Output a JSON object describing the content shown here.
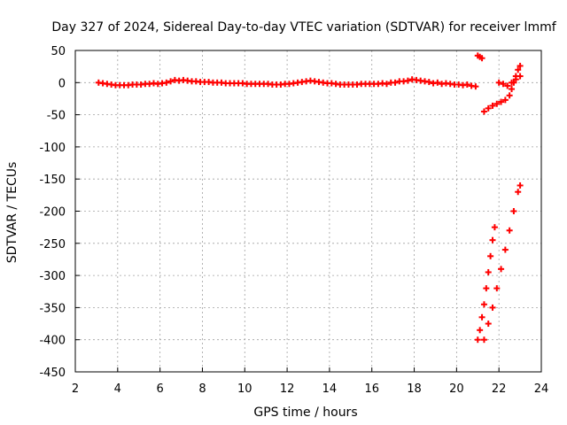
{
  "chart_data": {
    "type": "scatter",
    "title": "Day 327 of 2024, Sidereal Day-to-day VTEC variation (SDTVAR) for receiver lmmf",
    "xlabel": "GPS time / hours",
    "ylabel": "SDTVAR / TECUs",
    "xlim": [
      2,
      24
    ],
    "ylim": [
      -450,
      50
    ],
    "xticks": [
      2,
      4,
      6,
      8,
      10,
      12,
      14,
      16,
      18,
      20,
      22,
      24
    ],
    "yticks": [
      50,
      0,
      -50,
      -100,
      -150,
      -200,
      -250,
      -300,
      -350,
      -400,
      -450
    ],
    "xtick_labels": [
      "2",
      "4",
      "6",
      "8",
      "10",
      "12",
      "14",
      "16",
      "18",
      "20",
      "22",
      "24"
    ],
    "ytick_labels": [
      "50",
      "0",
      "-50",
      "-100",
      "-150",
      "-200",
      "-250",
      "-300",
      "-350",
      "-400",
      "-450"
    ],
    "grid": true,
    "marker": "plus",
    "color": "#ff0000",
    "series": [
      {
        "values_main": [
          [
            3.1,
            0
          ],
          [
            3.3,
            -1
          ],
          [
            3.5,
            -2
          ],
          [
            3.7,
            -3
          ],
          [
            3.9,
            -4
          ],
          [
            4.1,
            -4
          ],
          [
            4.3,
            -4
          ],
          [
            4.5,
            -4
          ],
          [
            4.7,
            -3
          ],
          [
            4.9,
            -3
          ],
          [
            5.1,
            -3
          ],
          [
            5.3,
            -2
          ],
          [
            5.5,
            -2
          ],
          [
            5.7,
            -1
          ],
          [
            5.9,
            -2
          ],
          [
            6.1,
            -1
          ],
          [
            6.3,
            0
          ],
          [
            6.5,
            2
          ],
          [
            6.7,
            4
          ],
          [
            6.9,
            3
          ],
          [
            7.1,
            4
          ],
          [
            7.3,
            3
          ],
          [
            7.5,
            2
          ],
          [
            7.7,
            2
          ],
          [
            7.9,
            1
          ],
          [
            8.1,
            1
          ],
          [
            8.3,
            1
          ],
          [
            8.5,
            0
          ],
          [
            8.7,
            0
          ],
          [
            8.9,
            0
          ],
          [
            9.1,
            -1
          ],
          [
            9.3,
            -1
          ],
          [
            9.5,
            -1
          ],
          [
            9.7,
            -1
          ],
          [
            9.9,
            -1
          ],
          [
            10.1,
            -2
          ],
          [
            10.3,
            -2
          ],
          [
            10.5,
            -2
          ],
          [
            10.7,
            -2
          ],
          [
            10.9,
            -2
          ],
          [
            11.1,
            -2
          ],
          [
            11.3,
            -3
          ],
          [
            11.5,
            -3
          ],
          [
            11.7,
            -3
          ],
          [
            11.9,
            -2
          ],
          [
            12.1,
            -2
          ],
          [
            12.3,
            -1
          ],
          [
            12.5,
            0
          ],
          [
            12.7,
            1
          ],
          [
            12.9,
            2
          ],
          [
            13.1,
            3
          ],
          [
            13.3,
            2
          ],
          [
            13.5,
            1
          ],
          [
            13.7,
            0
          ],
          [
            13.9,
            -1
          ],
          [
            14.1,
            -1
          ],
          [
            14.3,
            -2
          ],
          [
            14.5,
            -3
          ],
          [
            14.7,
            -3
          ],
          [
            14.9,
            -3
          ],
          [
            15.1,
            -3
          ],
          [
            15.3,
            -3
          ],
          [
            15.5,
            -2
          ],
          [
            15.7,
            -2
          ],
          [
            15.9,
            -2
          ],
          [
            16.1,
            -2
          ],
          [
            16.3,
            -2
          ],
          [
            16.5,
            -1
          ],
          [
            16.7,
            -2
          ],
          [
            16.9,
            0
          ],
          [
            17.1,
            0
          ],
          [
            17.3,
            2
          ],
          [
            17.5,
            2
          ],
          [
            17.7,
            3
          ],
          [
            17.9,
            5
          ],
          [
            18.1,
            4
          ],
          [
            18.3,
            3
          ],
          [
            18.5,
            2
          ],
          [
            18.7,
            1
          ],
          [
            18.9,
            -1
          ],
          [
            19.1,
            0
          ],
          [
            19.3,
            -2
          ],
          [
            19.5,
            -1
          ],
          [
            19.7,
            -2
          ],
          [
            19.9,
            -3
          ],
          [
            20.1,
            -3
          ],
          [
            20.3,
            -4
          ],
          [
            20.5,
            -3
          ],
          [
            20.7,
            -5
          ],
          [
            20.9,
            -6
          ]
        ],
        "values_upper_tail": [
          [
            21.0,
            42
          ],
          [
            21.1,
            40
          ],
          [
            21.2,
            38
          ],
          [
            21.3,
            -45
          ],
          [
            21.5,
            -40
          ],
          [
            21.7,
            -36
          ],
          [
            21.9,
            -33
          ],
          [
            22.1,
            -30
          ],
          [
            22.3,
            -27
          ],
          [
            22.5,
            -20
          ],
          [
            22.6,
            -10
          ],
          [
            22.7,
            0
          ],
          [
            22.8,
            10
          ],
          [
            22.9,
            20
          ],
          [
            23.0,
            26
          ],
          [
            22.0,
            0
          ],
          [
            22.2,
            -2
          ],
          [
            22.4,
            -5
          ],
          [
            22.6,
            0
          ],
          [
            22.8,
            5
          ],
          [
            23.0,
            10
          ]
        ],
        "values_lower_branch": [
          [
            21.0,
            -400
          ],
          [
            21.1,
            -385
          ],
          [
            21.2,
            -365
          ],
          [
            21.3,
            -345
          ],
          [
            21.4,
            -320
          ],
          [
            21.5,
            -295
          ],
          [
            21.6,
            -270
          ],
          [
            21.7,
            -245
          ],
          [
            21.8,
            -225
          ],
          [
            21.3,
            -400
          ],
          [
            21.5,
            -375
          ],
          [
            21.7,
            -350
          ],
          [
            21.9,
            -320
          ],
          [
            22.1,
            -290
          ],
          [
            22.3,
            -260
          ],
          [
            22.5,
            -230
          ],
          [
            22.7,
            -200
          ],
          [
            22.9,
            -170
          ],
          [
            23.0,
            -160
          ]
        ]
      }
    ]
  }
}
